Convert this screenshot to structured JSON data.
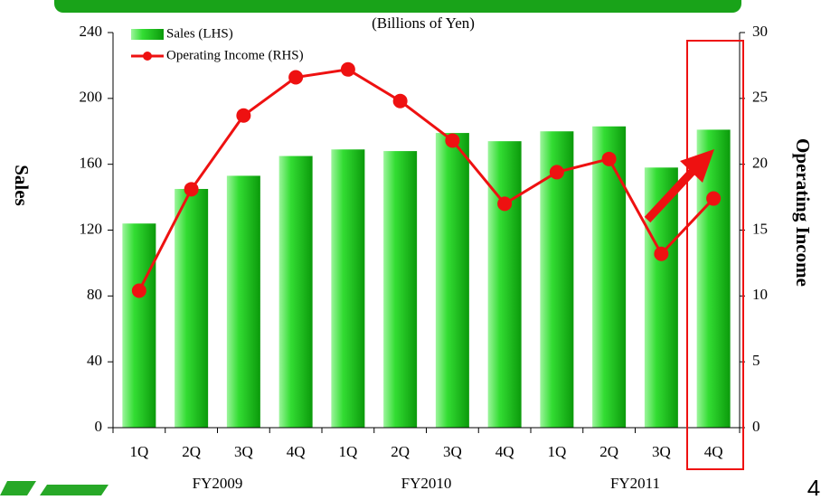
{
  "chart_data": {
    "type": "bar_line",
    "title": "(Billions of Yen)",
    "y_label": "Sales",
    "y2_label": "Operating Income",
    "categories": [
      "1Q",
      "2Q",
      "3Q",
      "4Q",
      "1Q",
      "2Q",
      "3Q",
      "4Q",
      "1Q",
      "2Q",
      "3Q",
      "4Q"
    ],
    "groups": [
      "FY2009",
      "FY2010",
      "FY2011"
    ],
    "series": [
      {
        "name": "Sales (LHS)",
        "type": "bar",
        "color": "#22cc22",
        "values": [
          124,
          145,
          153,
          165,
          169,
          168,
          179,
          174,
          180,
          183,
          158,
          181
        ]
      },
      {
        "name": "Operating Income (RHS)",
        "type": "line",
        "axis": "y2",
        "color": "#ee1111",
        "values": [
          10.4,
          18.1,
          23.7,
          26.6,
          27.2,
          24.8,
          21.8,
          17.0,
          19.4,
          20.4,
          13.2,
          17.4
        ]
      }
    ],
    "ylim": [
      0,
      240
    ],
    "yticks": [
      0,
      40,
      80,
      120,
      160,
      200,
      240
    ],
    "y2lim": [
      0,
      30
    ],
    "y2ticks": [
      0,
      5,
      10,
      15,
      20,
      25,
      30
    ],
    "legend": "top-left"
  },
  "page_number": "4"
}
